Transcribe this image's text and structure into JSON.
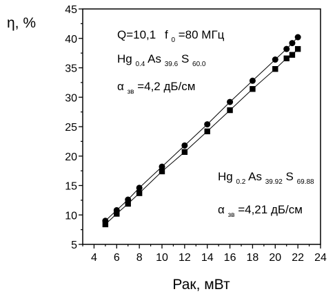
{
  "chart_data": {
    "type": "line",
    "xlabel": "Рак, мВт",
    "ylabel": "η, %",
    "xlim": [
      3,
      24
    ],
    "ylim": [
      5,
      45
    ],
    "x_ticks": [
      "4",
      "6",
      "8",
      "10",
      "12",
      "14",
      "16",
      "18",
      "20",
      "22",
      "24"
    ],
    "y_ticks": [
      "5",
      "10",
      "15",
      "20",
      "25",
      "30",
      "35",
      "40",
      "45"
    ],
    "grid": false,
    "series": [
      {
        "marker": "circle",
        "color": "#000000",
        "x": [
          5,
          6,
          7,
          8,
          10,
          12,
          14,
          16,
          18,
          20,
          21,
          21.5,
          22
        ],
        "y": [
          9.0,
          10.8,
          12.6,
          14.6,
          18.2,
          21.8,
          25.4,
          29.2,
          32.8,
          36.4,
          38.2,
          39.2,
          40.2
        ]
      },
      {
        "marker": "square",
        "color": "#000000",
        "x": [
          5,
          6,
          7,
          8,
          10,
          12,
          14,
          16,
          18,
          20,
          21,
          21.5,
          22
        ],
        "y": [
          8.4,
          10.2,
          11.9,
          13.7,
          17.4,
          20.7,
          24.2,
          27.8,
          31.4,
          34.8,
          36.6,
          37.2,
          38.2
        ]
      }
    ],
    "annotations": {
      "top": {
        "line1": {
          "q": "Q=10,1",
          "f": "f",
          "f_sub": "0",
          "f_val": "=80 МГц"
        },
        "line2": [
          "Hg",
          "0.4",
          "As",
          "39.6",
          "S",
          "60.0"
        ],
        "line3": {
          "alpha": "α",
          "sub": "зв",
          "val": "=4,2 дБ/см"
        }
      },
      "bottom": {
        "line1": [
          "Hg",
          "0.2",
          "As",
          "39.92",
          "S",
          "69.88"
        ],
        "line2": {
          "alpha": "α",
          "sub": "зв",
          "val": "=4,21 дБ/см"
        }
      }
    }
  }
}
